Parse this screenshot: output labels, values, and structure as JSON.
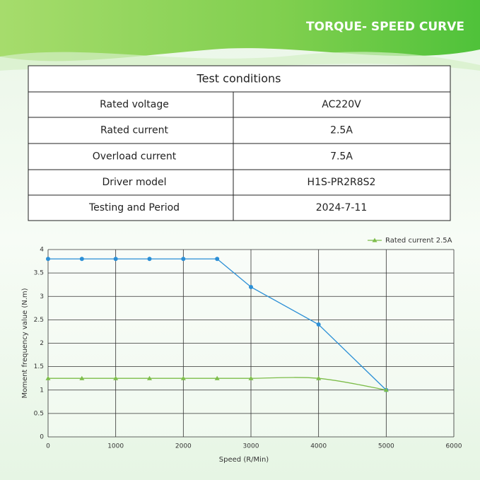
{
  "header": {
    "title": "TORQUE- SPEED CURVE"
  },
  "table": {
    "title": "Test conditions",
    "rows": [
      [
        "Rated voltage",
        "AC220V"
      ],
      [
        "Rated current",
        "2.5A"
      ],
      [
        "Overload current",
        "7.5A"
      ],
      [
        "Driver model",
        "H1S-PR2R8S2"
      ],
      [
        "Testing and Period",
        "2024-7-11"
      ]
    ]
  },
  "chart_data": {
    "type": "line",
    "x_label": "Speed (R/Min)",
    "y_label": "Moment frequency value (N.m)",
    "x": [
      0,
      500,
      1000,
      1500,
      2000,
      2500,
      3000,
      4000,
      5000
    ],
    "series": [
      {
        "color": "#2b8fd6",
        "marker": "circle",
        "values": [
          3.8,
          3.8,
          3.8,
          3.8,
          3.8,
          3.8,
          3.2,
          2.4,
          1.0
        ]
      },
      {
        "name": "Rated current 2.5A",
        "color": "#7dbd4a",
        "marker": "triangle",
        "smooth": true,
        "values": [
          1.25,
          1.25,
          1.25,
          1.25,
          1.25,
          1.25,
          1.25,
          1.25,
          1.0
        ]
      }
    ],
    "xlim": [
      0,
      6000
    ],
    "xticks": [
      0,
      1000,
      2000,
      3000,
      4000,
      5000,
      6000
    ],
    "ylim": [
      0,
      4
    ],
    "yticks": [
      0,
      0.5,
      1,
      1.5,
      2,
      2.5,
      3,
      3.5,
      4
    ],
    "grid": true,
    "legend": "top-right"
  }
}
